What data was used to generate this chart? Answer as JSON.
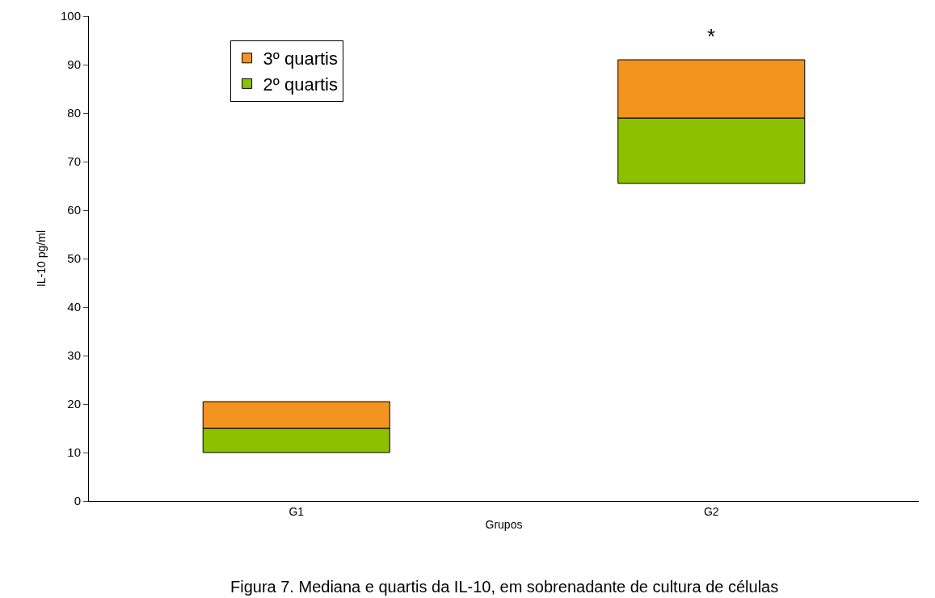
{
  "chart_data": {
    "type": "bar",
    "xlabel": "Grupos",
    "ylabel": "IL-10 pg/ml",
    "categories": [
      "G1",
      "G2"
    ],
    "series": [
      {
        "name": "2º quartis",
        "color": "#8cc000",
        "base": [
          10,
          65.5
        ],
        "values": [
          5,
          13.5
        ]
      },
      {
        "name": "3º quartis",
        "color": "#f39420",
        "base": [
          15,
          79
        ],
        "values": [
          5.5,
          12
        ]
      }
    ],
    "ylim": [
      0,
      100
    ],
    "yticks": [
      0,
      10,
      20,
      30,
      40,
      50,
      60,
      70,
      80,
      90,
      100
    ],
    "legend": "top left",
    "annotations": [
      "*",
      "Figura 7. Mediana e quartis da IL-10, em sobrenadante de cultura de células"
    ]
  }
}
